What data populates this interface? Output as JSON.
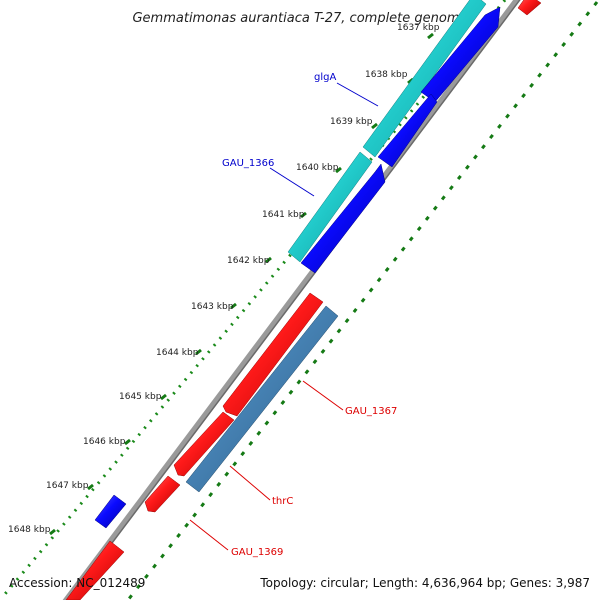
{
  "title": "Gemmatimonas aurantiaca T-27, complete genome",
  "footer": {
    "accession": "Accession: NC_012489",
    "summary": "Topology: circular; Length: 4,636,964 bp; Genes: 3,987"
  },
  "ticks": [
    {
      "label": "1637 kbp"
    },
    {
      "label": "1638 kbp"
    },
    {
      "label": "1639 kbp"
    },
    {
      "label": "1640 kbp"
    },
    {
      "label": "1641 kbp"
    },
    {
      "label": "1642 kbp"
    },
    {
      "label": "1643 kbp"
    },
    {
      "label": "1644 kbp"
    },
    {
      "label": "1645 kbp"
    },
    {
      "label": "1646 kbp"
    },
    {
      "label": "1647 kbp"
    },
    {
      "label": "1648 kbp"
    }
  ],
  "gene_labels": [
    {
      "text": "glgA",
      "color": "#0000cc"
    },
    {
      "text": "GAU_1366",
      "color": "#0000cc"
    },
    {
      "text": "GAU_1367",
      "color": "#dd0000"
    },
    {
      "text": "thrC",
      "color": "#dd0000"
    },
    {
      "text": "GAU_1369",
      "color": "#dd0000"
    }
  ],
  "colors": {
    "forward_cds": "#0000ee",
    "reverse_cds": "#ee0000",
    "forward_gene": "#22cccc",
    "reverse_gene": "#4682b4",
    "backbone": "#888888",
    "outer_dots": "#1a8a1a",
    "inner_dashes": "#157a15"
  }
}
